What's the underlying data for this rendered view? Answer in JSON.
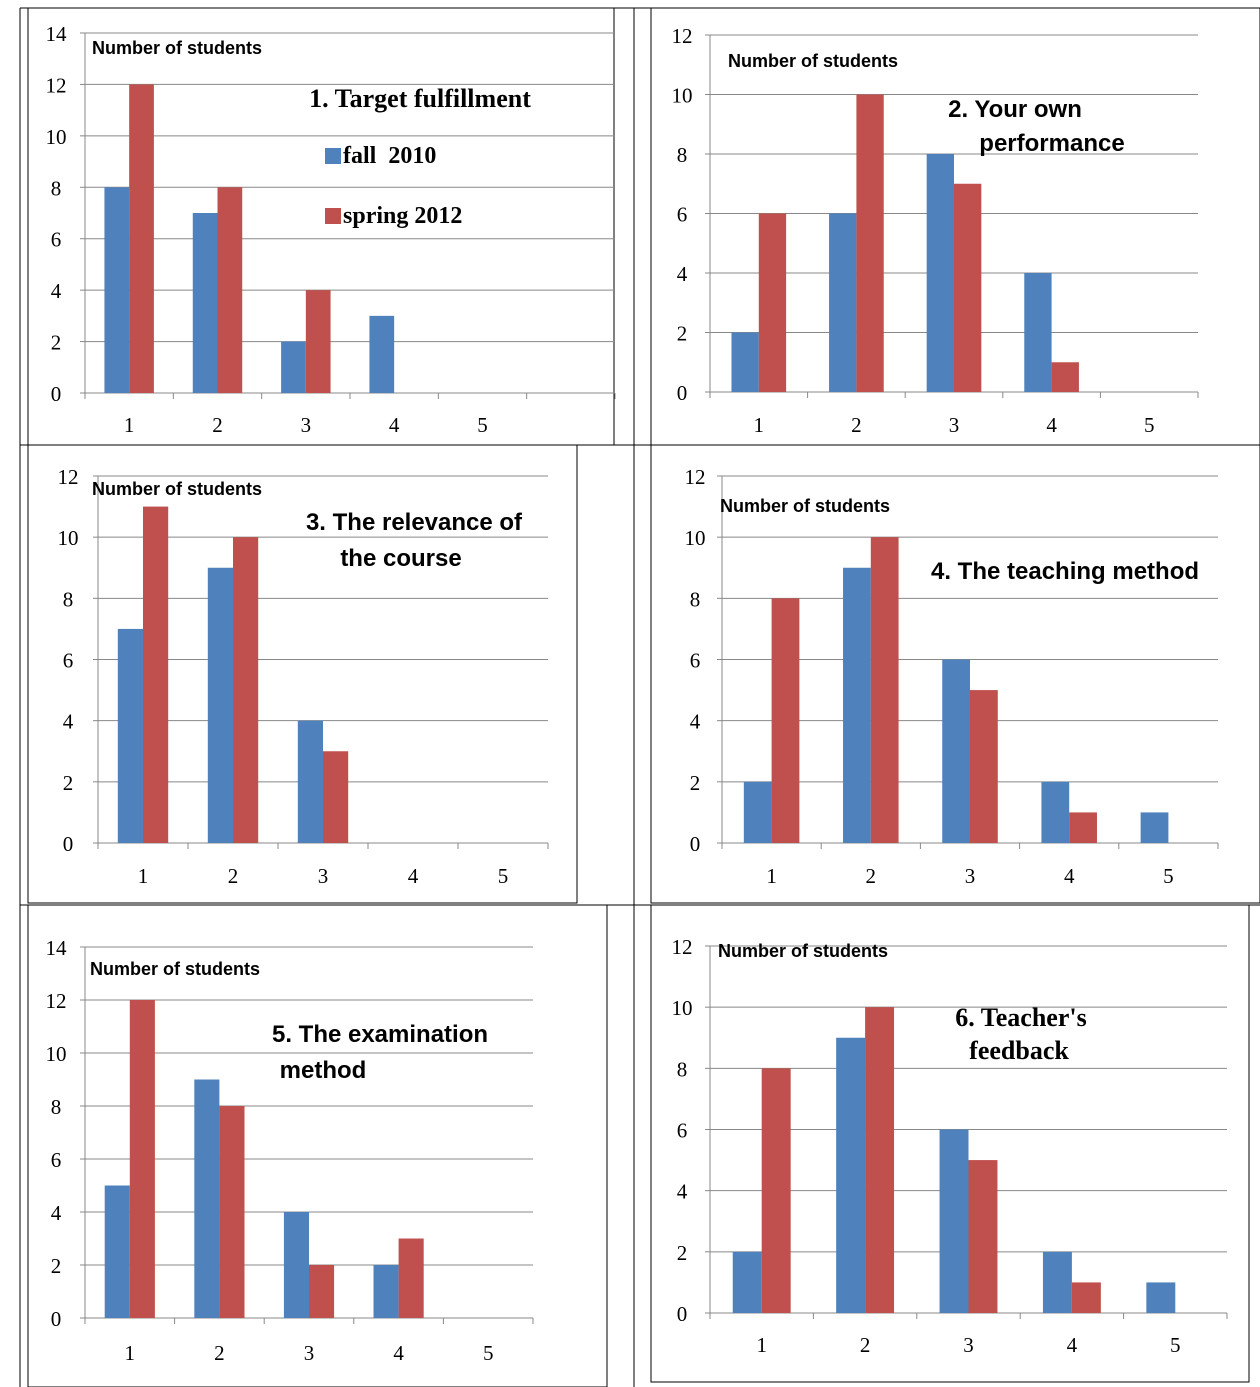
{
  "colors": {
    "fall_2010": "#4f81bd",
    "spring_2012": "#c0504d",
    "grid": "#888888",
    "axis": "#888888"
  },
  "legend": {
    "items": [
      "fall  2010",
      "spring 2012"
    ],
    "placement": "inside-top-right, chart 1 only"
  },
  "chart_data": [
    {
      "type": "bar",
      "title": "1. Target fulfillment",
      "ylabel": "Number of students",
      "categories": [
        "1",
        "2",
        "3",
        "4",
        "5"
      ],
      "ylim": [
        0,
        14
      ],
      "yticks": [
        0,
        2,
        4,
        6,
        8,
        10,
        12,
        14
      ],
      "grid": true,
      "series": [
        {
          "name": "fall  2010",
          "values": [
            8,
            7,
            2,
            3,
            0
          ]
        },
        {
          "name": "spring 2012",
          "values": [
            12,
            8,
            4,
            0,
            0
          ]
        }
      ]
    },
    {
      "type": "bar",
      "title": "2. Your own performance",
      "ylabel": "Number of students",
      "categories": [
        "1",
        "2",
        "3",
        "4",
        "5"
      ],
      "ylim": [
        0,
        12
      ],
      "yticks": [
        0,
        2,
        4,
        6,
        8,
        10,
        12
      ],
      "grid": true,
      "series": [
        {
          "name": "fall  2010",
          "values": [
            2,
            6,
            8,
            4,
            0
          ]
        },
        {
          "name": "spring 2012",
          "values": [
            6,
            10,
            7,
            1,
            0
          ]
        }
      ]
    },
    {
      "type": "bar",
      "title": "3. The relevance of the course",
      "ylabel": "Number of students",
      "categories": [
        "1",
        "2",
        "3",
        "4",
        "5"
      ],
      "ylim": [
        0,
        12
      ],
      "yticks": [
        0,
        2,
        4,
        6,
        8,
        10,
        12
      ],
      "grid": true,
      "series": [
        {
          "name": "fall  2010",
          "values": [
            7,
            9,
            4,
            0,
            0
          ]
        },
        {
          "name": "spring 2012",
          "values": [
            11,
            10,
            3,
            0,
            0
          ]
        }
      ]
    },
    {
      "type": "bar",
      "title": "4. The teaching method",
      "ylabel": "Number of students",
      "categories": [
        "1",
        "2",
        "3",
        "4",
        "5"
      ],
      "ylim": [
        0,
        12
      ],
      "yticks": [
        0,
        2,
        4,
        6,
        8,
        10,
        12
      ],
      "grid": true,
      "series": [
        {
          "name": "fall  2010",
          "values": [
            2,
            9,
            6,
            2,
            1
          ]
        },
        {
          "name": "spring 2012",
          "values": [
            8,
            10,
            5,
            1,
            0
          ]
        }
      ]
    },
    {
      "type": "bar",
      "title": "5. The examination method",
      "ylabel": "Number of students",
      "categories": [
        "1",
        "2",
        "3",
        "4",
        "5"
      ],
      "ylim": [
        0,
        14
      ],
      "yticks": [
        0,
        2,
        4,
        6,
        8,
        10,
        12,
        14
      ],
      "grid": true,
      "series": [
        {
          "name": "fall  2010",
          "values": [
            5,
            9,
            4,
            2,
            0
          ]
        },
        {
          "name": "spring 2012",
          "values": [
            12,
            8,
            2,
            3,
            0
          ]
        }
      ]
    },
    {
      "type": "bar",
      "title": "6. Teacher's feedback",
      "ylabel": "Number of students",
      "categories": [
        "1",
        "2",
        "3",
        "4",
        "5"
      ],
      "ylim": [
        0,
        12
      ],
      "yticks": [
        0,
        2,
        4,
        6,
        8,
        10,
        12
      ],
      "grid": true,
      "series": [
        {
          "name": "fall  2010",
          "values": [
            2,
            9,
            6,
            2,
            1
          ]
        },
        {
          "name": "spring 2012",
          "values": [
            8,
            10,
            5,
            1,
            0
          ]
        }
      ]
    }
  ]
}
